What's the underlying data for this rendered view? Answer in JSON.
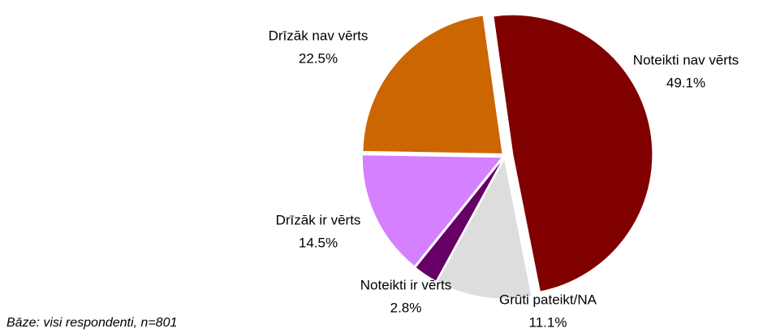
{
  "chart_data": {
    "type": "pie",
    "categories": [
      "Noteikti nav vērts",
      "Grūti pateikt/NA",
      "Noteikti ir vērts",
      "Drīzāk ir vērts",
      "Drīzāk nav vērts"
    ],
    "values": [
      49.1,
      11.1,
      2.8,
      14.5,
      22.5
    ],
    "value_labels": [
      "49.1%",
      "11.1%",
      "2.8%",
      "14.5%",
      "22.5%"
    ],
    "colors": [
      "#800000",
      "#dddddd",
      "#660066",
      "#d580ff",
      "#cc6600"
    ],
    "note": "Bāze: visi respondenti, n=801"
  }
}
